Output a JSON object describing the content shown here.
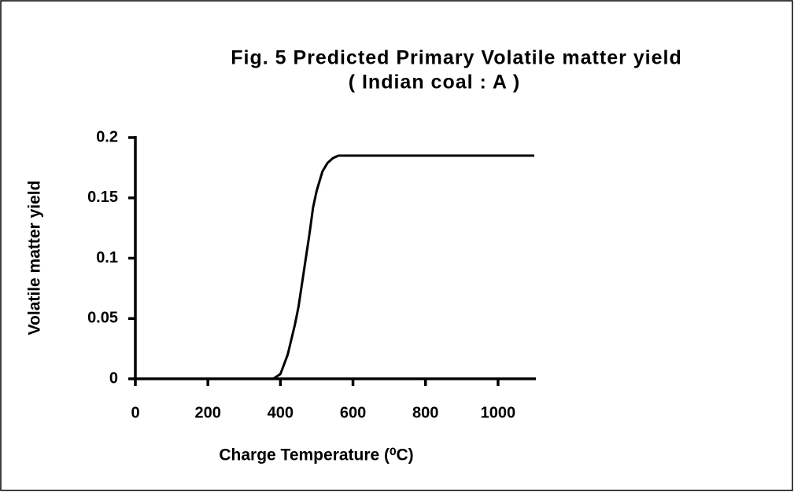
{
  "chart_data": {
    "type": "line",
    "title": "Fig. 5 Predicted Primary Volatile matter yield",
    "subtitle": "( Indian coal : A )",
    "x_label": "Charge Temperature (⁰C)",
    "y_label": "Volatile matter yield",
    "x": [
      0,
      200,
      380,
      400,
      420,
      440,
      450,
      460,
      470,
      480,
      490,
      500,
      516,
      530,
      545,
      560,
      580,
      600,
      650,
      700,
      800,
      900,
      1000,
      1100
    ],
    "series": [
      {
        "name": "Volatile matter yield",
        "color": "#000000",
        "values": [
          0,
          0,
          0,
          0.004,
          0.02,
          0.045,
          0.06,
          0.08,
          0.1,
          0.12,
          0.142,
          0.156,
          0.172,
          0.179,
          0.183,
          0.185,
          0.185,
          0.185,
          0.185,
          0.185,
          0.185,
          0.185,
          0.185,
          0.185
        ]
      }
    ],
    "xlim": [
      0,
      1100
    ],
    "xticks": [
      0,
      200,
      400,
      600,
      800,
      1000
    ],
    "ylim": [
      0,
      0.2
    ],
    "yticks": [
      0,
      0.05,
      0.1,
      0.15,
      0.2
    ]
  }
}
